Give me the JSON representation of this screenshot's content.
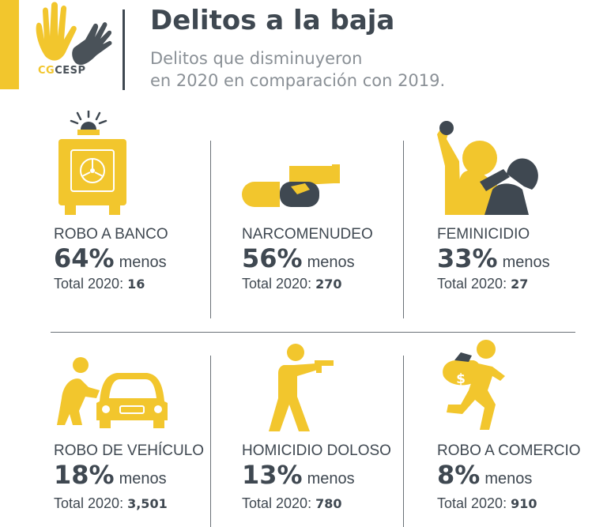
{
  "header": {
    "logo_text_a": "CG",
    "logo_text_b": "CESP",
    "title": "Delitos a la baja",
    "subtitle_line1": "Delitos que disminuyeron",
    "subtitle_line2": "en 2020 en comparación con 2019."
  },
  "colors": {
    "accent": "#f2c62d",
    "dark": "#3f4851",
    "muted": "#8a9096"
  },
  "crimes": [
    {
      "label": "ROBO A BANCO",
      "pct": "64%",
      "unit": "menos",
      "total_label": "Total 2020:",
      "total": "16",
      "icon": "bank-vault-alarm-icon"
    },
    {
      "label": "NARCOMENUDEO",
      "pct": "56%",
      "unit": "menos",
      "total_label": "Total 2020:",
      "total": "270",
      "icon": "hand-pill-icon"
    },
    {
      "label": "FEMINICIDIO",
      "pct": "33%",
      "unit": "menos",
      "total_label": "Total 2020:",
      "total": "27",
      "icon": "assault-figures-icon"
    },
    {
      "label": "ROBO DE VEHÍCULO",
      "pct": "18%",
      "unit": "menos",
      "total_label": "Total 2020:",
      "total": "3,501",
      "icon": "car-theft-icon"
    },
    {
      "label": "HOMICIDIO DOLOSO",
      "pct": "13%",
      "unit": "menos",
      "total_label": "Total 2020:",
      "total": "780",
      "icon": "gunman-icon"
    },
    {
      "label": "ROBO A COMERCIO",
      "pct": "8%",
      "unit": "menos",
      "total_label": "Total 2020:",
      "total": "910",
      "icon": "running-thief-money-bag-icon"
    }
  ]
}
